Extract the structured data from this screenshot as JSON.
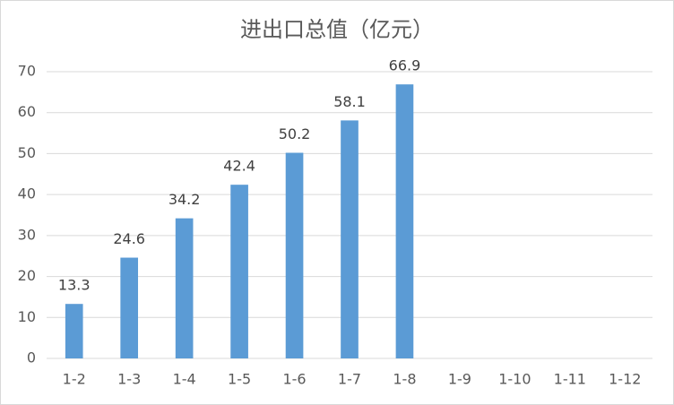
{
  "chart_data": {
    "type": "bar",
    "title": "进出口总值（亿元）",
    "categories": [
      "1-2",
      "1-3",
      "1-4",
      "1-5",
      "1-6",
      "1-7",
      "1-8",
      "1-9",
      "1-10",
      "1-11",
      "1-12"
    ],
    "values": [
      13.3,
      24.6,
      34.2,
      42.4,
      50.2,
      58.1,
      66.9,
      null,
      null,
      null,
      null
    ],
    "color": "#5b9bd5",
    "ylim": [
      0,
      70
    ],
    "yticks": [
      0,
      10,
      20,
      30,
      40,
      50,
      60,
      70
    ],
    "grid": true
  }
}
